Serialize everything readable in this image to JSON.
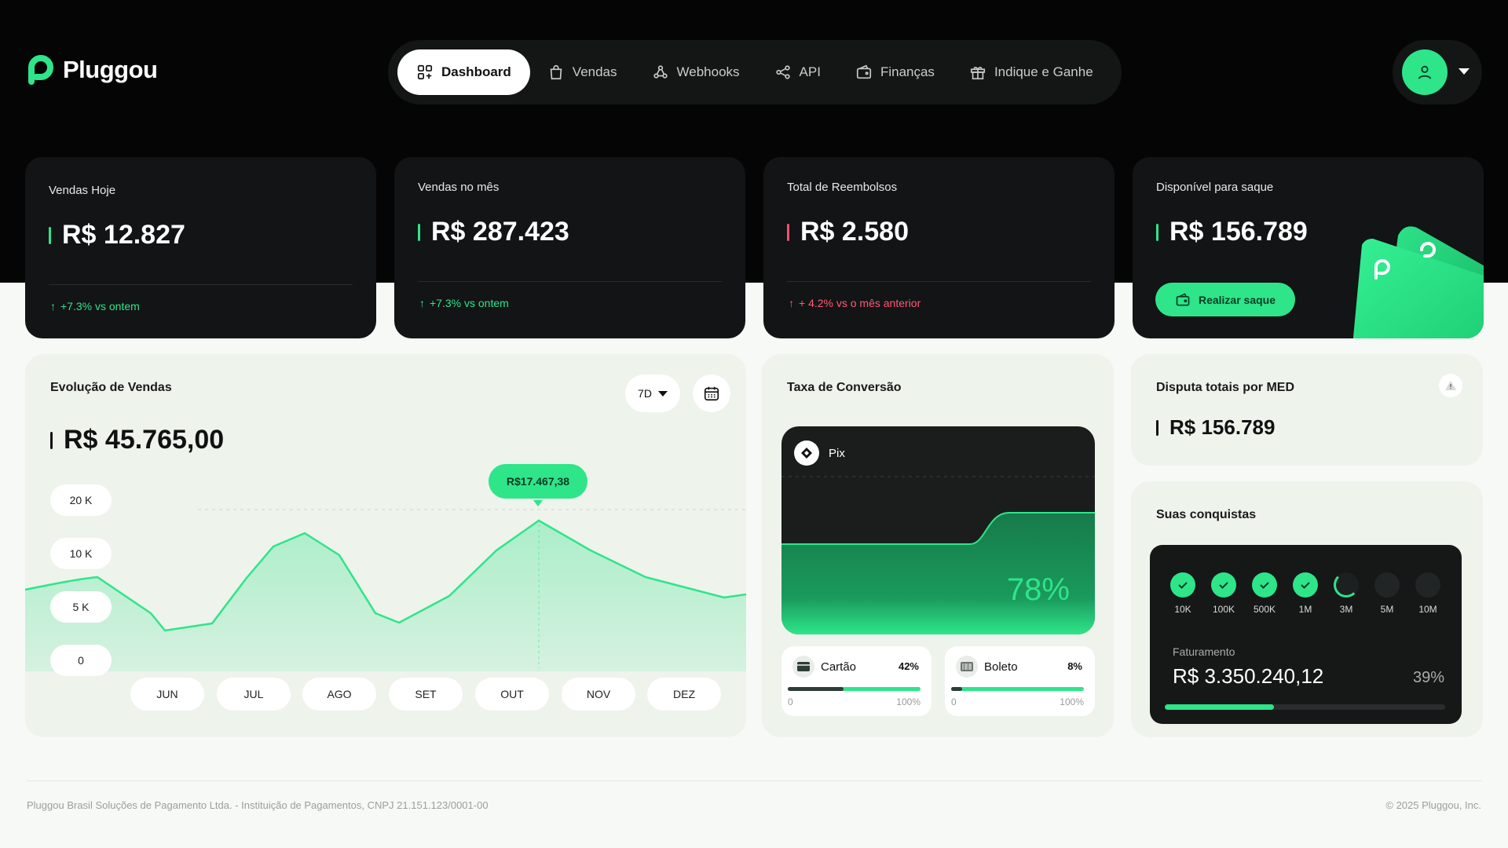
{
  "brand": {
    "name": "Pluggou",
    "accent": "#2ee58a"
  },
  "nav": {
    "items": [
      {
        "label": "Dashboard",
        "icon": "dashboard-icon",
        "active": true
      },
      {
        "label": "Vendas",
        "icon": "shopping-bag-icon"
      },
      {
        "label": "Webhooks",
        "icon": "webhook-icon"
      },
      {
        "label": "API",
        "icon": "share-icon"
      },
      {
        "label": "Finanças",
        "icon": "wallet-icon"
      },
      {
        "label": "Indique e Ganhe",
        "icon": "gift-icon"
      }
    ]
  },
  "stats": [
    {
      "label": "Vendas Hoje",
      "value": "R$ 12.827",
      "delta": "+7.3% vs ontem",
      "trend": "up"
    },
    {
      "label": "Vendas no mês",
      "value": "R$ 287.423",
      "delta": "+7.3% vs ontem",
      "trend": "up"
    },
    {
      "label": "Total de Reembolsos",
      "value": "R$ 2.580",
      "delta": "+ 4.2% vs o mês anterior",
      "trend": "up-bad"
    },
    {
      "label": "Disponível para saque",
      "value": "R$ 156.789",
      "button": "Realizar saque"
    }
  ],
  "evolucao": {
    "title": "Evolução de Vendas",
    "total": "R$ 45.765,00",
    "period": "7D",
    "tooltip": "R$17.467,38"
  },
  "chart_data": {
    "type": "area",
    "categories": [
      "JUN",
      "JUL",
      "AGO",
      "SET",
      "OUT",
      "NOV",
      "DEZ"
    ],
    "yticks": [
      "20 K",
      "10 K",
      "5 K",
      "0"
    ],
    "highlight": {
      "label": "R$17.467,38"
    }
  },
  "conversao": {
    "title": "Taxa de Conversão",
    "pix": {
      "label": "Pix",
      "percent": "78%",
      "value": 78
    },
    "methods": [
      {
        "label": "Cartão",
        "percent": "42%",
        "value": 42,
        "min": "0",
        "max": "100%"
      },
      {
        "label": "Boleto",
        "percent": "8%",
        "value": 8,
        "min": "0",
        "max": "100%"
      }
    ]
  },
  "disputa": {
    "title": "Disputa totais por MED",
    "value": "R$ 156.789"
  },
  "conquistas": {
    "title": "Suas conquistas",
    "milestones": [
      {
        "label": "10K",
        "state": "done"
      },
      {
        "label": "100K",
        "state": "done"
      },
      {
        "label": "500K",
        "state": "done"
      },
      {
        "label": "1M",
        "state": "done"
      },
      {
        "label": "3M",
        "state": "progress"
      },
      {
        "label": "5M",
        "state": "todo"
      },
      {
        "label": "10M",
        "state": "todo"
      }
    ],
    "faturamento_label": "Faturamento",
    "faturamento_value": "R$ 3.350.240,12",
    "progress_label": "39%",
    "progress": 39
  },
  "footer": {
    "left": "Pluggou Brasil Soluções de Pagamento Ltda. - Instituição de Pagamentos, CNPJ 21.151.123/0001-00",
    "right": "© 2025 Pluggou, Inc."
  }
}
